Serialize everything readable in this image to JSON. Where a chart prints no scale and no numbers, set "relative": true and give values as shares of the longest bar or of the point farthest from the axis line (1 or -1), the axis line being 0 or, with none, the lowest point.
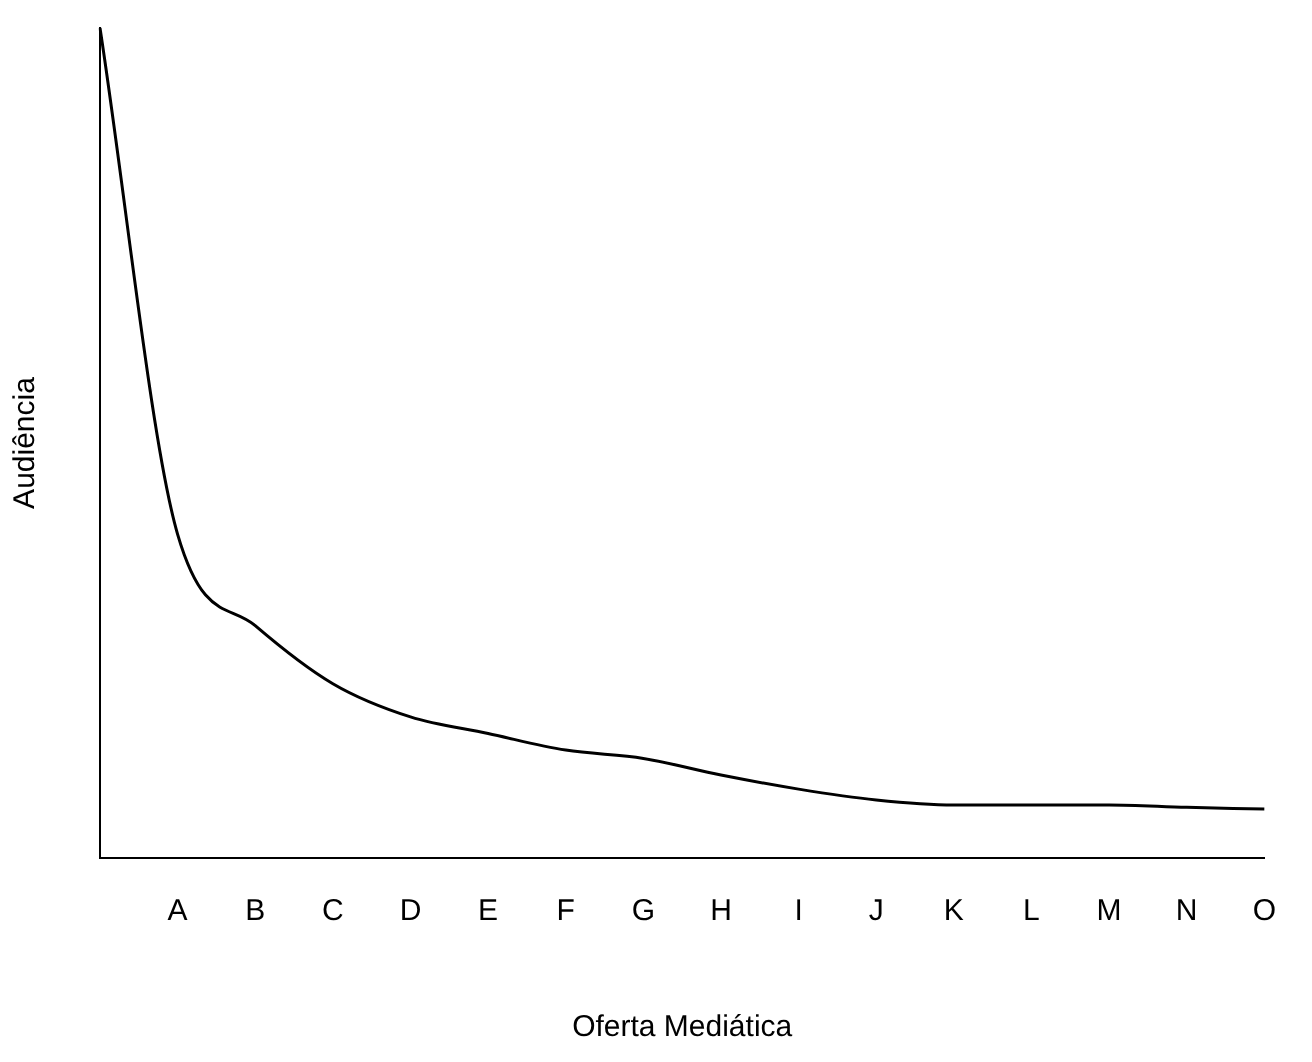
{
  "chart_data": {
    "type": "line",
    "relative": true,
    "xlabel": "Oferta Mediática",
    "ylabel": "Audiência",
    "categories": [
      null,
      "A",
      "B",
      "C",
      "D",
      "E",
      "F",
      "G",
      "H",
      "I",
      "J",
      "K",
      "L",
      "M",
      "N",
      "O"
    ],
    "series": [
      {
        "color": "#000000",
        "values": [
          1,
          0.39,
          0.28,
          0.21,
          0.17,
          0.15,
          0.13,
          0.12,
          0.1,
          0.083,
          0.07,
          0.064,
          0.064,
          0.064,
          0.061,
          0.059
        ]
      }
    ],
    "marker": "none",
    "grid": false,
    "legend": false
  }
}
